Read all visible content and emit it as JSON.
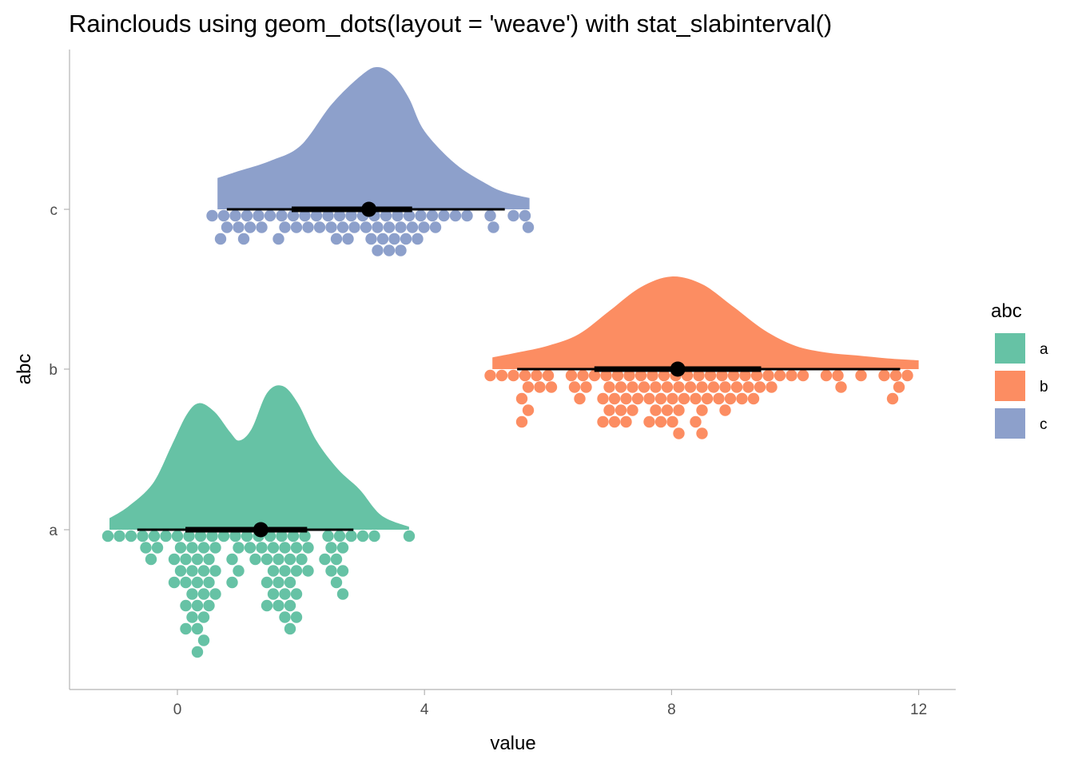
{
  "chart_data": {
    "type": "raincloud",
    "title": "Rainclouds using geom_dots(layout = 'weave') with stat_slabinterval()",
    "xlabel": "value",
    "ylabel": "abc",
    "x_ticks": [
      0,
      4,
      8,
      12
    ],
    "x_tick_labels": [
      "0",
      "4",
      "8",
      "12"
    ],
    "xlim": [
      -1.75,
      12.6
    ],
    "categories": [
      "a",
      "b",
      "c"
    ],
    "grid": false,
    "legend": {
      "title": "abc",
      "position": "right",
      "entries": [
        "a",
        "b",
        "c"
      ]
    },
    "series": [
      {
        "name": "a",
        "color": "#66c2a5",
        "median": 1.35,
        "interval_66": [
          0.13,
          2.1
        ],
        "interval_95": [
          -0.65,
          2.85
        ],
        "density_curve": [
          [
            -1.1,
            0.08
          ],
          [
            -0.8,
            0.16
          ],
          [
            -0.4,
            0.32
          ],
          [
            -0.1,
            0.58
          ],
          [
            0.15,
            0.8
          ],
          [
            0.35,
            0.88
          ],
          [
            0.6,
            0.82
          ],
          [
            0.85,
            0.68
          ],
          [
            1.0,
            0.62
          ],
          [
            1.2,
            0.7
          ],
          [
            1.45,
            0.95
          ],
          [
            1.7,
            1.0
          ],
          [
            1.95,
            0.88
          ],
          [
            2.25,
            0.62
          ],
          [
            2.6,
            0.42
          ],
          [
            2.95,
            0.28
          ],
          [
            3.3,
            0.1
          ],
          [
            3.75,
            0.02
          ]
        ],
        "dots": [
          -1.12,
          -0.85,
          -0.75,
          -0.6,
          -0.55,
          -0.3,
          -0.3,
          -0.3,
          -0.18,
          -0.05,
          -0.05,
          -0.05,
          0.05,
          0.05,
          0.1,
          0.1,
          0.1,
          0.1,
          0.1,
          0.2,
          0.2,
          0.2,
          0.2,
          0.3,
          0.35,
          0.35,
          0.35,
          0.4,
          0.4,
          0.4,
          0.4,
          0.4,
          0.45,
          0.45,
          0.5,
          0.55,
          0.55,
          0.6,
          0.65,
          0.65,
          0.65,
          0.8,
          0.85,
          0.95,
          1.0,
          1.0,
          1.0,
          1.05,
          1.15,
          1.3,
          1.4,
          1.4,
          1.45,
          1.45,
          1.45,
          1.45,
          1.45,
          1.45,
          1.55,
          1.6,
          1.65,
          1.65,
          1.65,
          1.65,
          1.65,
          1.75,
          1.75,
          1.8,
          1.8,
          1.8,
          1.8,
          1.8,
          1.8,
          1.85,
          1.95,
          1.95,
          2.0,
          2.05,
          2.05,
          2.1,
          2.35,
          2.45,
          2.5,
          2.5,
          2.55,
          2.55,
          2.55,
          2.55,
          2.65,
          2.7,
          2.85,
          3.05,
          3.1,
          3.8
        ]
      },
      {
        "name": "b",
        "color": "#fc8d62",
        "median": 8.1,
        "interval_66": [
          6.75,
          9.45
        ],
        "interval_95": [
          5.5,
          11.7
        ],
        "density_curve": [
          [
            5.1,
            0.12
          ],
          [
            5.5,
            0.17
          ],
          [
            6.0,
            0.24
          ],
          [
            6.5,
            0.36
          ],
          [
            7.0,
            0.6
          ],
          [
            7.5,
            0.84
          ],
          [
            8.0,
            0.95
          ],
          [
            8.5,
            0.87
          ],
          [
            9.0,
            0.64
          ],
          [
            9.5,
            0.4
          ],
          [
            10.0,
            0.24
          ],
          [
            10.5,
            0.17
          ],
          [
            11.0,
            0.14
          ],
          [
            11.5,
            0.11
          ],
          [
            12.0,
            0.09
          ]
        ],
        "dots": [
          5.1,
          5.2,
          5.45,
          5.55,
          5.55,
          5.6,
          5.7,
          5.7,
          5.85,
          5.9,
          6.0,
          6.05,
          6.3,
          6.35,
          6.6,
          6.6,
          6.65,
          6.7,
          6.85,
          6.9,
          6.95,
          7.0,
          7.0,
          7.05,
          7.1,
          7.15,
          7.2,
          7.2,
          7.25,
          7.3,
          7.3,
          7.35,
          7.4,
          7.45,
          7.5,
          7.55,
          7.6,
          7.6,
          7.65,
          7.7,
          7.75,
          7.8,
          7.8,
          7.85,
          7.9,
          7.95,
          8.0,
          8.05,
          8.05,
          8.1,
          8.1,
          8.15,
          8.2,
          8.2,
          8.3,
          8.35,
          8.35,
          8.4,
          8.4,
          8.45,
          8.5,
          8.55,
          8.65,
          8.7,
          8.75,
          8.85,
          8.9,
          8.9,
          9.0,
          9.0,
          9.05,
          9.1,
          9.15,
          9.2,
          9.3,
          9.35,
          9.4,
          9.5,
          9.55,
          9.75,
          9.95,
          10.15,
          10.45,
          10.7,
          10.75,
          11.1,
          11.45,
          11.55,
          11.65,
          11.7,
          11.75
        ]
      },
      {
        "name": "c",
        "color": "#8da0cb",
        "median": 3.1,
        "interval_66": [
          1.85,
          3.8
        ],
        "interval_95": [
          0.8,
          5.3
        ],
        "density_curve": [
          [
            0.65,
            0.22
          ],
          [
            1.0,
            0.27
          ],
          [
            1.5,
            0.34
          ],
          [
            2.0,
            0.45
          ],
          [
            2.5,
            0.74
          ],
          [
            3.0,
            0.95
          ],
          [
            3.25,
            1.0
          ],
          [
            3.5,
            0.94
          ],
          [
            3.75,
            0.78
          ],
          [
            4.0,
            0.55
          ],
          [
            4.5,
            0.32
          ],
          [
            5.0,
            0.18
          ],
          [
            5.3,
            0.12
          ],
          [
            5.7,
            0.08
          ]
        ],
        "dots": [
          0.6,
          0.7,
          0.75,
          0.8,
          0.85,
          0.9,
          1.1,
          1.15,
          1.2,
          1.3,
          1.4,
          1.55,
          1.6,
          1.65,
          1.7,
          1.85,
          1.9,
          2.0,
          2.15,
          2.2,
          2.3,
          2.45,
          2.5,
          2.55,
          2.6,
          2.7,
          2.75,
          2.8,
          2.9,
          3.0,
          3.05,
          3.1,
          3.15,
          3.2,
          3.25,
          3.3,
          3.35,
          3.4,
          3.45,
          3.5,
          3.55,
          3.6,
          3.65,
          3.7,
          3.75,
          3.8,
          3.85,
          3.9,
          4.0,
          4.1,
          4.2,
          4.35,
          4.55,
          4.75,
          5.0,
          5.05,
          5.5,
          5.55,
          5.65
        ]
      }
    ]
  }
}
